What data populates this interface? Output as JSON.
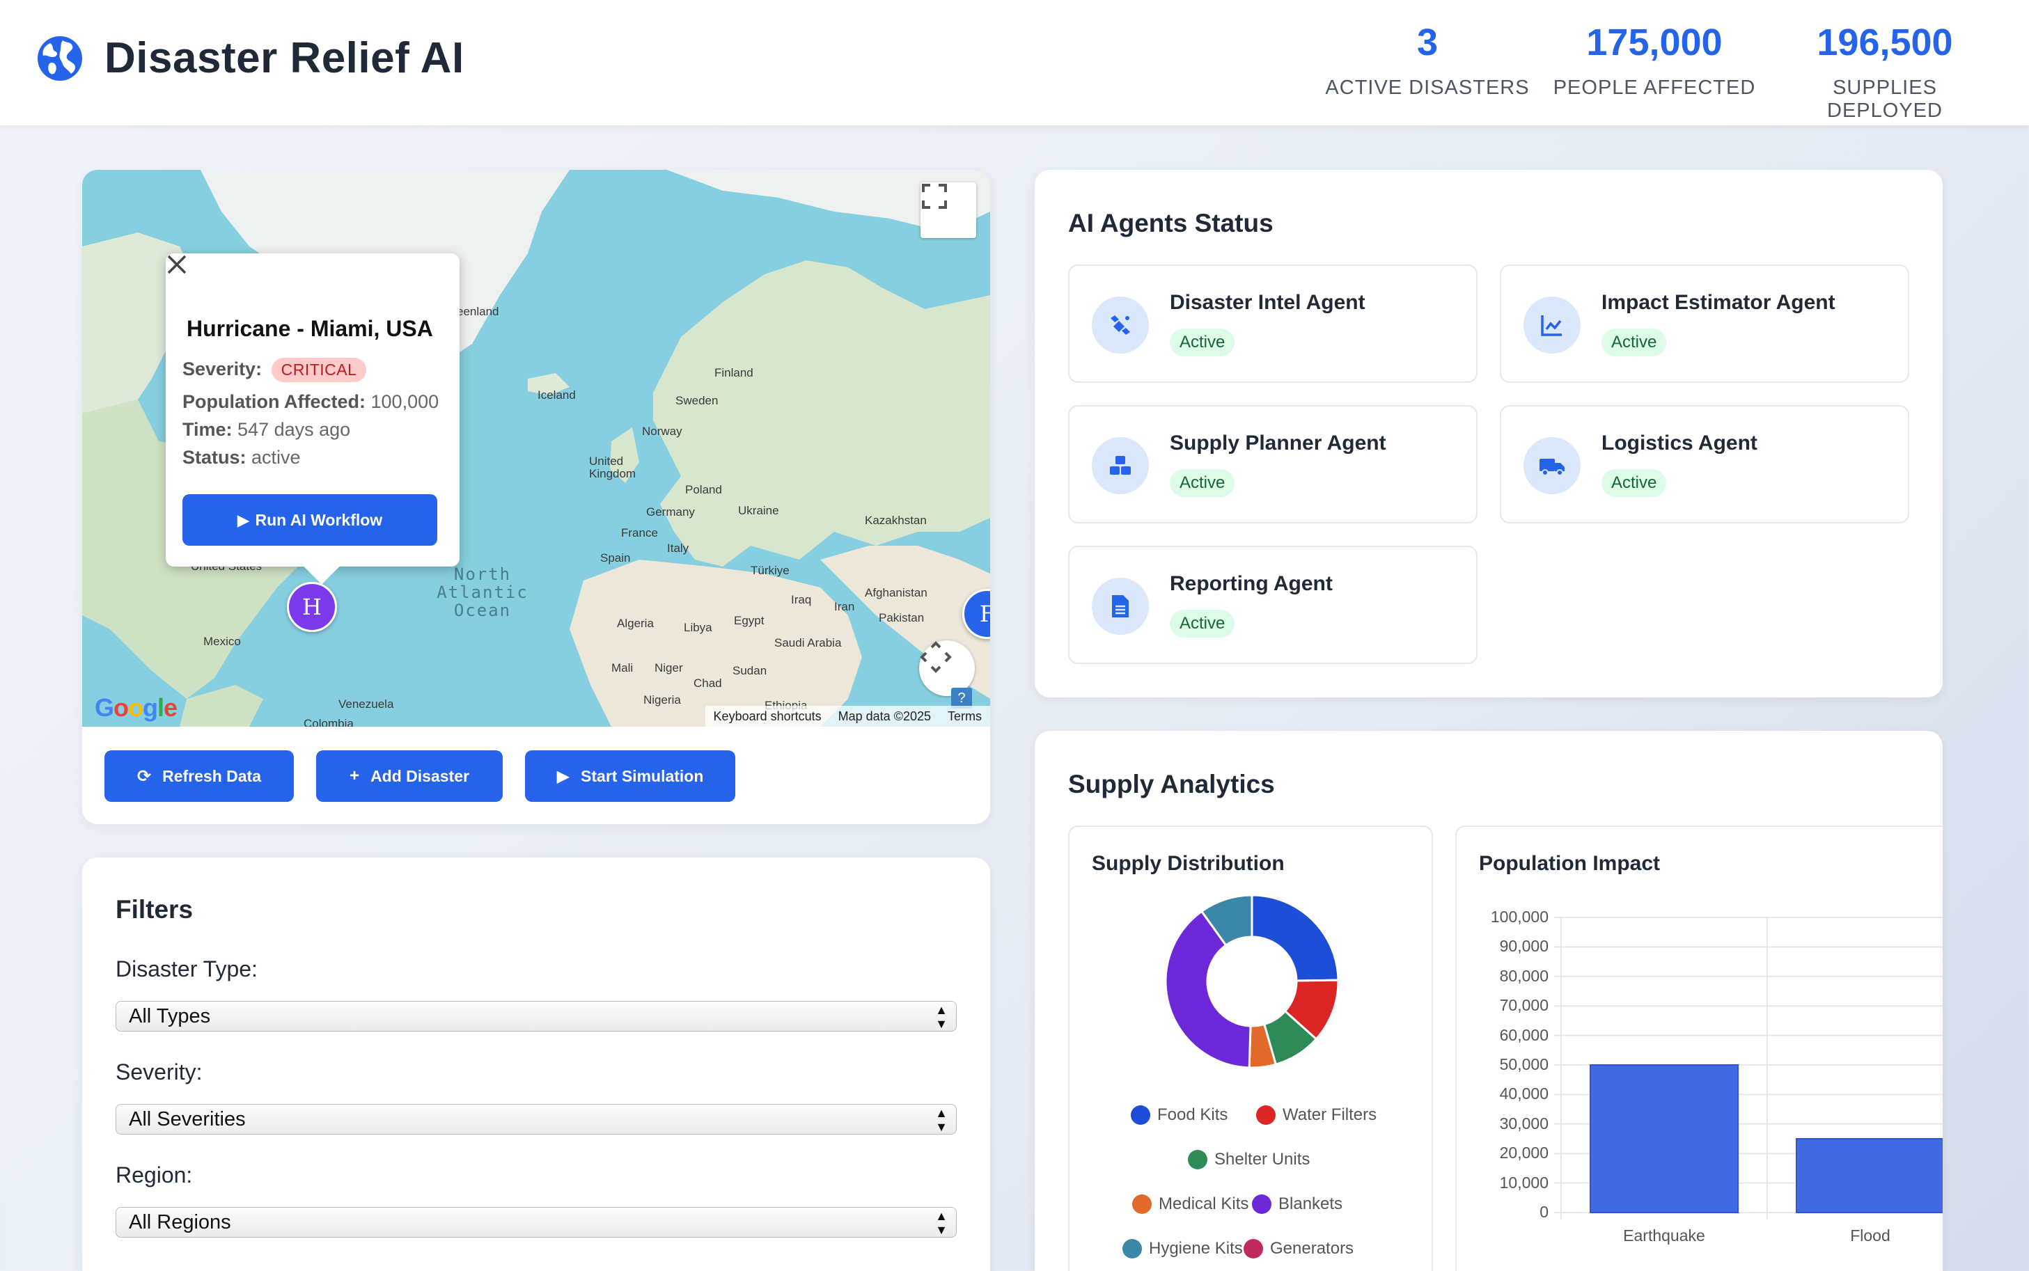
{
  "header": {
    "title": "Disaster Relief AI",
    "stats": [
      {
        "value": "3",
        "label": "ACTIVE DISASTERS"
      },
      {
        "value": "175,000",
        "label": "PEOPLE AFFECTED"
      },
      {
        "value": "196,500",
        "label": "SUPPLIES DEPLOYED"
      }
    ]
  },
  "map": {
    "labels": {
      "greenland": "eenland",
      "iceland": "Iceland",
      "finland": "Finland",
      "sweden": "Sweden",
      "norway": "Norway",
      "uk": "United Kingdom",
      "poland": "Poland",
      "germany": "Germany",
      "ukraine": "Ukraine",
      "france": "France",
      "kazakhstan": "Kazakhstan",
      "spain": "Spain",
      "italy": "Italy",
      "turkiye": "Türkiye",
      "afghanistan": "Afghanistan",
      "iraq": "Iraq",
      "iran": "Iran",
      "pakistan": "Pakistan",
      "algeria": "Algeria",
      "libya": "Libya",
      "egypt": "Egypt",
      "saudi": "Saudi Arabia",
      "mali": "Mali",
      "niger": "Niger",
      "sudan": "Sudan",
      "chad": "Chad",
      "nigeria": "Nigeria",
      "ethiopia": "Ethiopia",
      "us": "United States",
      "mexico": "Mexico",
      "venezuela": "Venezuela",
      "colombia": "Colombia",
      "ocean": "North Atlantic Ocean",
      "ocean_l1": "North",
      "ocean_l2": "Atlantic",
      "ocean_l3": "Ocean"
    },
    "attribution": {
      "shortcuts": "Keyboard shortcuts",
      "data": "Map data ©2025",
      "terms": "Terms"
    },
    "google": "Google",
    "help": "?",
    "markers": [
      {
        "letter": "H"
      },
      {
        "letter": "F"
      }
    ],
    "popup": {
      "title": "Hurricane - Miami, USA",
      "severity_label": "Severity:",
      "severity_value": "CRITICAL",
      "population_label": "Population Affected:",
      "population_value": "100,000",
      "time_label": "Time:",
      "time_value": "547 days ago",
      "status_label": "Status:",
      "status_value": "active",
      "button": "Run AI Workflow"
    }
  },
  "actions": {
    "refresh": "Refresh Data",
    "add": "Add Disaster",
    "simulate": "Start Simulation"
  },
  "filters": {
    "title": "Filters",
    "type_label": "Disaster Type:",
    "type_value": "All Types",
    "severity_label": "Severity:",
    "severity_value": "All Severities",
    "region_label": "Region:",
    "region_value": "All Regions"
  },
  "agents": {
    "title": "AI Agents Status",
    "items": [
      {
        "name": "Disaster Intel Agent",
        "status": "Active",
        "icon": "satellite-icon"
      },
      {
        "name": "Impact Estimator Agent",
        "status": "Active",
        "icon": "chart-line-icon"
      },
      {
        "name": "Supply Planner Agent",
        "status": "Active",
        "icon": "boxes-icon"
      },
      {
        "name": "Logistics Agent",
        "status": "Active",
        "icon": "truck-icon"
      },
      {
        "name": "Reporting Agent",
        "status": "Active",
        "icon": "document-icon"
      }
    ]
  },
  "supply": {
    "title": "Supply Analytics",
    "distribution_title": "Supply Distribution",
    "population_title": "Population Impact"
  },
  "chart_data": [
    {
      "type": "pie",
      "title": "Supply Distribution",
      "categories": [
        "Food Kits",
        "Water Filters",
        "Shelter Units",
        "Medical Kits",
        "Blankets",
        "Hygiene Kits",
        "Generators"
      ],
      "values": [
        25,
        12,
        9,
        5,
        40,
        10,
        0
      ],
      "colors": [
        "#1d4ed8",
        "#dc2626",
        "#2e8b57",
        "#e2692b",
        "#6d28d9",
        "#3b87a8",
        "#be2a5e"
      ]
    },
    {
      "type": "bar",
      "title": "Population Impact",
      "categories": [
        "Earthquake",
        "Flood"
      ],
      "values": [
        50000,
        25000
      ],
      "ylim": [
        0,
        100000
      ],
      "yticks": [
        "0",
        "10,000",
        "20,000",
        "30,000",
        "40,000",
        "50,000",
        "60,000",
        "70,000",
        "80,000",
        "90,000",
        "100,000"
      ],
      "color": "#4169e1"
    }
  ]
}
